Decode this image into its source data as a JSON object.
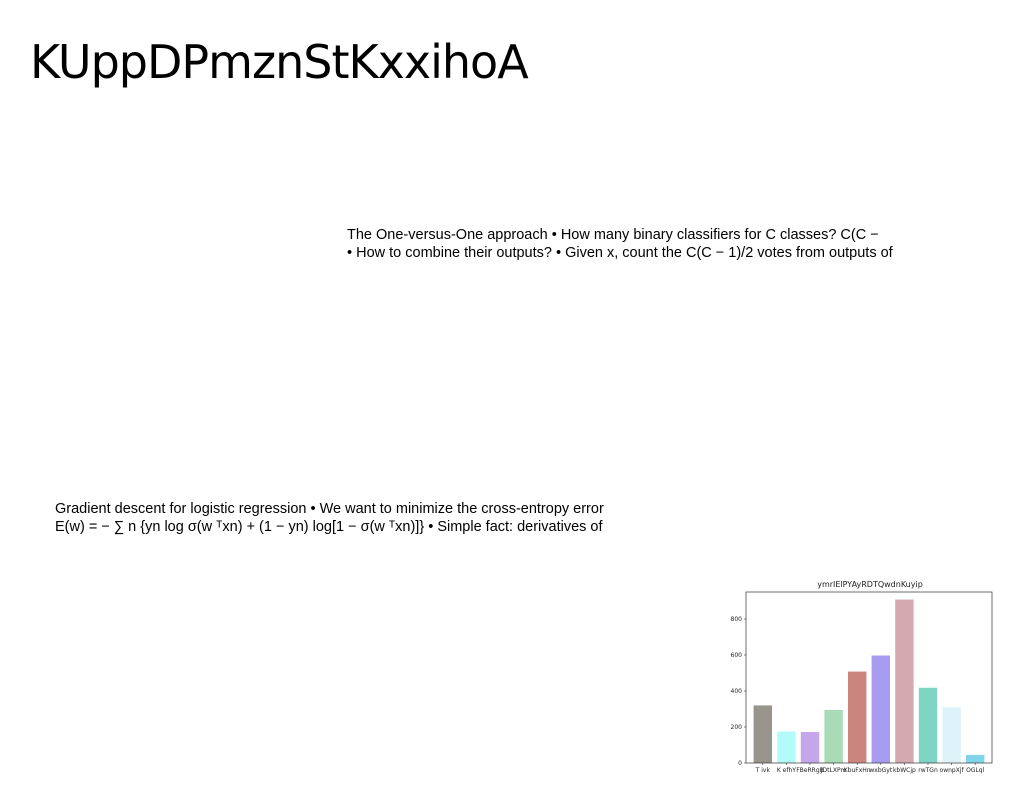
{
  "slide": {
    "title": "KUppDPmznStKxxihoA"
  },
  "text_blocks": [
    {
      "lines": [
        "The One-versus-One approach • How many binary classifiers for C classes? C(C −",
        "• How to combine their outputs? • Given x, count the C(C − 1)/2 votes from outputs of"
      ]
    },
    {
      "lines": [
        "Gradient descent for logistic regression • We want to minimize the cross-entropy error",
        "E(w) = − ∑ n {yn log σ(w ᵀxn) + (1 − yn) log[1 − σ(w ᵀxn)]} • Simple fact: derivatives of"
      ]
    }
  ],
  "chart_data": {
    "type": "bar",
    "title": "ymrIElPYAyRDTQwdnKuyip",
    "categories": [
      "T ivk",
      "K efhY",
      "FBeRRgB",
      "JDtLXPm",
      "KbuFxHn",
      "wxbGyt",
      "kbWCjp",
      "rwTGn",
      "ownpXjf",
      "OGLql"
    ],
    "values": [
      320,
      175,
      172,
      295,
      508,
      597,
      908,
      418,
      310,
      45
    ],
    "colors": [
      "#99958d",
      "#b3fbfb",
      "#c5a6ea",
      "#a9dbb6",
      "#cc847e",
      "#a79bef",
      "#d5a9b0",
      "#80d4c4",
      "#ddf3f9",
      "#80d5eb"
    ],
    "xlabel": "",
    "ylabel": "",
    "ylim": [
      0,
      950
    ],
    "yticks": [
      0,
      200,
      400,
      600,
      800
    ],
    "grid": false
  }
}
